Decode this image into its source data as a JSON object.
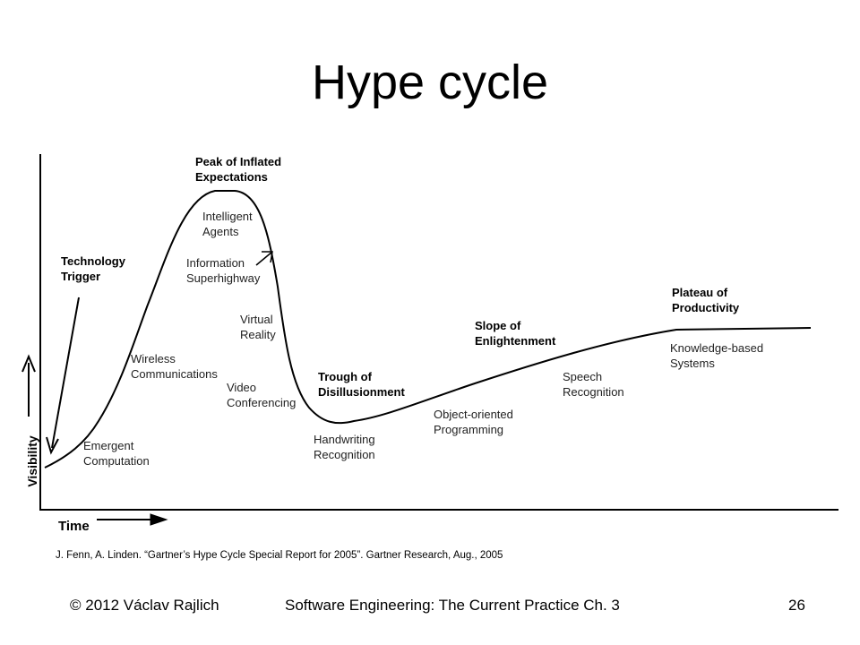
{
  "title": "Hype cycle",
  "diagram": {
    "y_axis_label": "Visibility",
    "x_axis_label": "Time",
    "phases": [
      {
        "lines": [
          "Technology",
          "Trigger"
        ]
      },
      {
        "lines": [
          "Peak of Inflated",
          "Expectations"
        ]
      },
      {
        "lines": [
          "Trough of",
          "Disillusionment"
        ]
      },
      {
        "lines": [
          "Slope of",
          "Enlightenment"
        ]
      },
      {
        "lines": [
          "Plateau of",
          "Productivity"
        ]
      }
    ],
    "technologies": [
      {
        "lines": [
          "Emergent",
          "Computation"
        ]
      },
      {
        "lines": [
          "Wireless",
          "Communications"
        ]
      },
      {
        "lines": [
          "Intelligent",
          "Agents"
        ]
      },
      {
        "lines": [
          "Information",
          "Superhighway"
        ]
      },
      {
        "lines": [
          "Virtual",
          "Reality"
        ]
      },
      {
        "lines": [
          "Video",
          "Conferencing"
        ]
      },
      {
        "lines": [
          "Handwriting",
          "Recognition"
        ]
      },
      {
        "lines": [
          "Object-oriented",
          "Programming"
        ]
      },
      {
        "lines": [
          "Speech",
          "Recognition"
        ]
      },
      {
        "lines": [
          "Knowledge-based",
          "Systems"
        ]
      }
    ]
  },
  "citation": "J. Fenn, A. Linden. “Gartner’s Hype Cycle Special Report for 2005”.  Gartner Research, Aug., 2005",
  "footer": {
    "left": "© 2012 Václav Rajlich",
    "center": "Software Engineering: The Current Practice  Ch. 3",
    "right": "26"
  }
}
